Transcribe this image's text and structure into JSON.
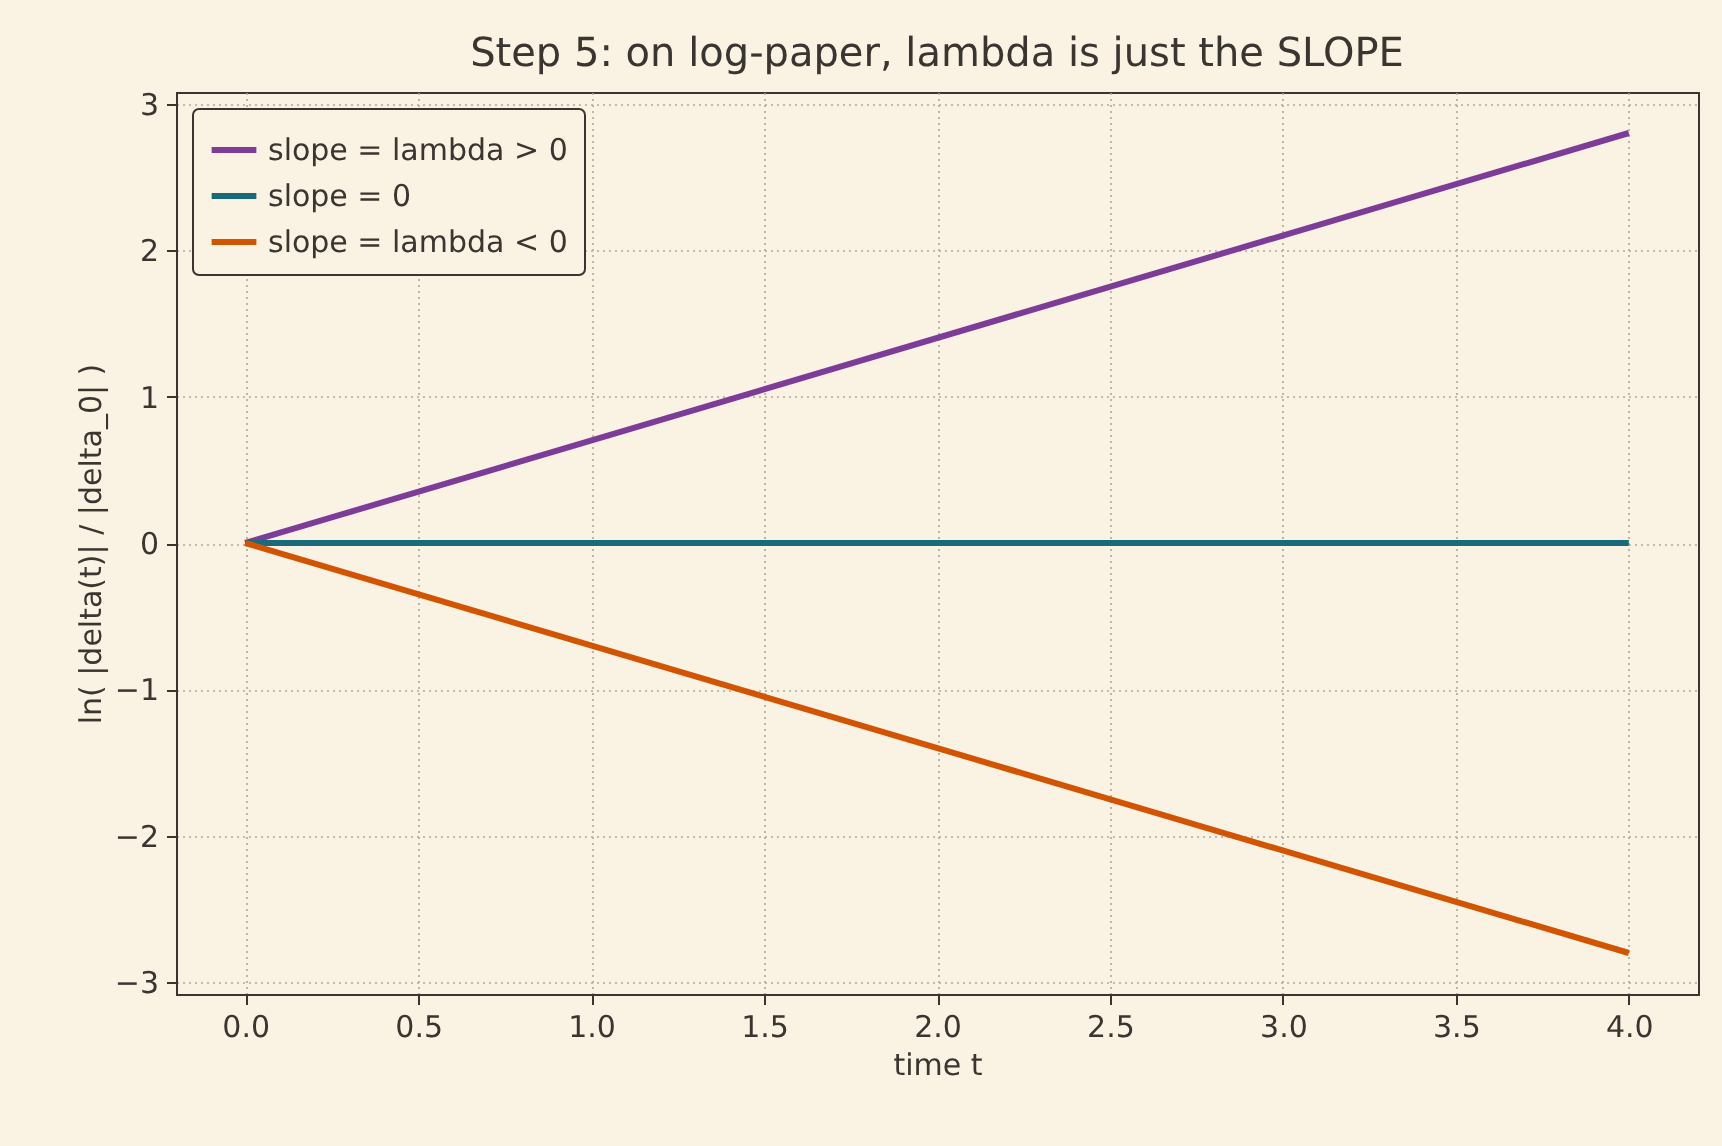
{
  "chart_data": {
    "type": "line",
    "title": "Step 5: on log-paper, lambda is just the SLOPE",
    "xlabel": "time t",
    "ylabel": "ln( |delta(t)| / |delta_0| )",
    "x": [
      0,
      4
    ],
    "series": [
      {
        "name": "slope = lambda > 0",
        "color": "#7d3c98",
        "values": [
          0,
          2.8
        ]
      },
      {
        "name": "slope = 0",
        "color": "#1a6b7a",
        "values": [
          0,
          0
        ]
      },
      {
        "name": "slope = lambda < 0",
        "color": "#d35400",
        "values": [
          0,
          -2.8
        ]
      }
    ],
    "xlim": [
      -0.2,
      4.2
    ],
    "ylim": [
      -3.08,
      3.08
    ],
    "xticks": [
      {
        "value": 0,
        "label": "0.0"
      },
      {
        "value": 0.5,
        "label": "0.5"
      },
      {
        "value": 1,
        "label": "1.0"
      },
      {
        "value": 1.5,
        "label": "1.5"
      },
      {
        "value": 2,
        "label": "2.0"
      },
      {
        "value": 2.5,
        "label": "2.5"
      },
      {
        "value": 3,
        "label": "3.0"
      },
      {
        "value": 3.5,
        "label": "3.5"
      },
      {
        "value": 4,
        "label": "4.0"
      }
    ],
    "yticks": [
      {
        "value": -3,
        "label": "−3"
      },
      {
        "value": -2,
        "label": "−2"
      },
      {
        "value": -1,
        "label": "−1"
      },
      0,
      1,
      2,
      3
    ],
    "grid": true,
    "legend": "top left",
    "line_style": "solid",
    "marker": "none"
  }
}
